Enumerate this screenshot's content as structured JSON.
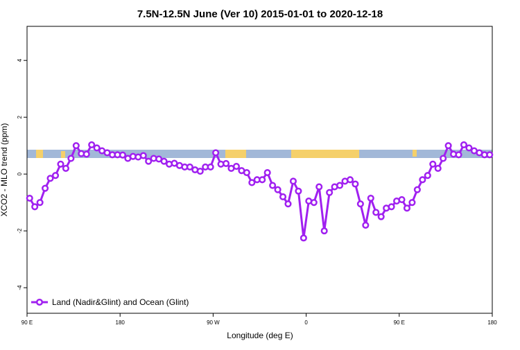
{
  "chart_data": {
    "type": "line",
    "title": "7.5N-12.5N June (Ver 10)   2015-01-01 to 2020-12-18",
    "x_label": "Longitude (deg E)",
    "y_label": "XCO2 - MLO trend (ppm)",
    "xlim": [
      90,
      540
    ],
    "ylim": [
      -4.9,
      5.2
    ],
    "xticks": [
      {
        "value": 90,
        "label": "90 E"
      },
      {
        "value": 180,
        "label": "180"
      },
      {
        "value": 270,
        "label": "90 W"
      },
      {
        "value": 360,
        "label": "0"
      },
      {
        "value": 450,
        "label": "90 E"
      },
      {
        "value": 540,
        "label": "180"
      }
    ],
    "yticks": [
      -4,
      -2,
      0,
      2,
      4
    ],
    "legend": "bottom-left",
    "x": [
      92.5,
      97.5,
      102.5,
      107.5,
      112.5,
      117.5,
      122.5,
      127.5,
      132.5,
      137.5,
      142.5,
      147.5,
      152.5,
      157.5,
      162.5,
      167.5,
      172.5,
      177.5,
      182.5,
      187.5,
      192.5,
      197.5,
      202.5,
      207.5,
      212.5,
      217.5,
      222.5,
      227.5,
      232.5,
      237.5,
      242.5,
      247.5,
      252.5,
      257.5,
      262.5,
      267.5,
      272.5,
      277.5,
      282.5,
      287.5,
      292.5,
      297.5,
      302.5,
      307.5,
      312.5,
      317.5,
      322.5,
      327.5,
      332.5,
      337.5,
      342.5,
      347.5,
      352.5,
      357.5,
      362.5,
      367.5,
      372.5,
      377.5,
      382.5,
      387.5,
      392.5,
      397.5,
      402.5,
      407.5,
      412.5,
      417.5,
      422.5,
      427.5,
      432.5,
      437.5,
      442.5,
      447.5,
      452.5,
      457.5,
      462.5,
      467.5,
      472.5,
      477.5,
      482.5,
      487.5,
      492.5,
      497.5,
      502.5,
      507.5,
      512.5,
      517.5,
      522.5,
      527.5,
      532.5,
      537.5
    ],
    "series": [
      {
        "name": "Land (Nadir&Glint) and Ocean (Glint)",
        "color": "#a020f0",
        "values": [
          -0.85,
          -1.15,
          -1.0,
          -0.5,
          -0.15,
          -0.05,
          0.35,
          0.2,
          0.55,
          1.0,
          0.72,
          0.7,
          1.03,
          0.92,
          0.82,
          0.75,
          0.68,
          0.68,
          0.67,
          0.55,
          0.62,
          0.6,
          0.65,
          0.45,
          0.55,
          0.53,
          0.45,
          0.35,
          0.38,
          0.3,
          0.25,
          0.25,
          0.15,
          0.1,
          0.25,
          0.25,
          0.75,
          0.35,
          0.37,
          0.2,
          0.27,
          0.12,
          0.05,
          -0.3,
          -0.2,
          -0.2,
          0.05,
          -0.4,
          -0.55,
          -0.8,
          -1.05,
          -0.25,
          -0.6,
          -2.25,
          -0.95,
          -1.0,
          -0.45,
          -2.0,
          -0.65,
          -0.45,
          -0.4,
          -0.25,
          -0.2,
          -0.35,
          -1.05,
          -1.8,
          -0.85,
          -1.35,
          -1.5,
          -1.2,
          -1.15,
          -0.95,
          -0.9,
          -1.2,
          -1.0,
          -0.55,
          -0.2,
          -0.05,
          0.35,
          0.2,
          0.55,
          1.0,
          0.7,
          0.68,
          1.03,
          0.92,
          0.82,
          0.75,
          0.68,
          0.68
        ]
      }
    ]
  }
}
